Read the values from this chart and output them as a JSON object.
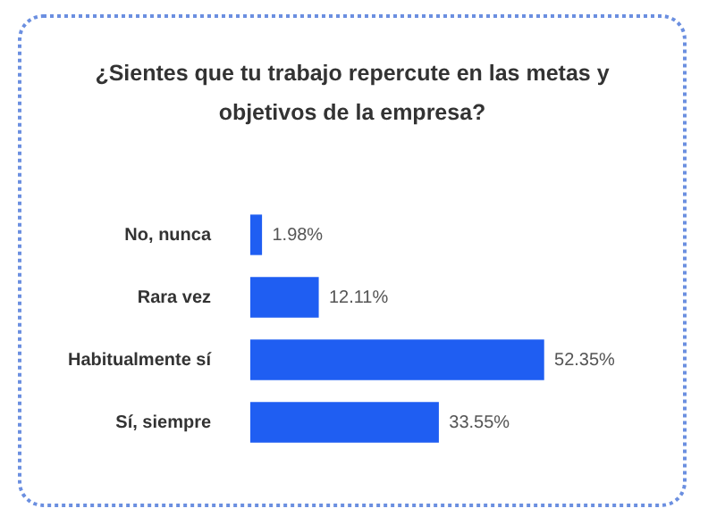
{
  "chart_data": {
    "type": "bar",
    "orientation": "horizontal",
    "title": "¿Sientes que tu trabajo repercute en las metas y objetivos de la empresa?",
    "categories": [
      "No, nunca",
      "Rara vez",
      "Habitualmente sí",
      "Sí, siempre"
    ],
    "values": [
      1.98,
      12.11,
      52.35,
      33.55
    ],
    "value_labels": [
      "1.98%",
      "12.11%",
      "52.35%",
      "33.55%"
    ],
    "color": "#1f5ef2"
  }
}
